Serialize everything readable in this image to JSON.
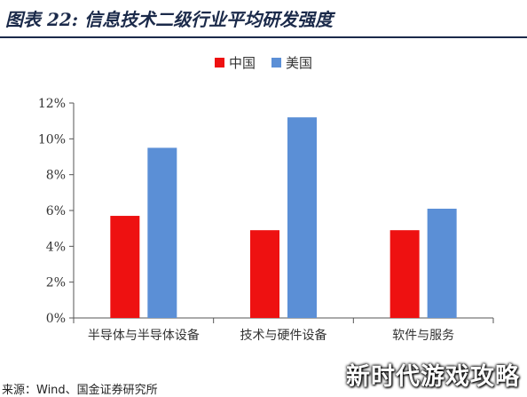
{
  "figure": {
    "title": "图表 22: 信息技术二级行业平均研发强度",
    "source": "来源：Wind、国金证券研究所",
    "watermark": "新时代游戏攻略"
  },
  "legend": [
    {
      "name": "中国",
      "color": "#ee1111"
    },
    {
      "name": "美国",
      "color": "#5b8fd6"
    }
  ],
  "chart_data": {
    "type": "bar",
    "categories": [
      "半导体与半导体设备",
      "技术与硬件设备",
      "软件与服务"
    ],
    "series": [
      {
        "name": "中国",
        "values": [
          5.7,
          4.9,
          4.9
        ],
        "color": "#ee1111"
      },
      {
        "name": "美国",
        "values": [
          9.5,
          11.2,
          6.1
        ],
        "color": "#5b8fd6"
      }
    ],
    "ylim": [
      0,
      12
    ],
    "yticks": [
      0,
      2,
      4,
      6,
      8,
      10,
      12
    ],
    "ytick_labels": [
      "0%",
      "2%",
      "4%",
      "6%",
      "8%",
      "10%",
      "12%"
    ],
    "grid": false,
    "legend_position": "top-center",
    "title": "",
    "xlabel": "",
    "ylabel": ""
  }
}
